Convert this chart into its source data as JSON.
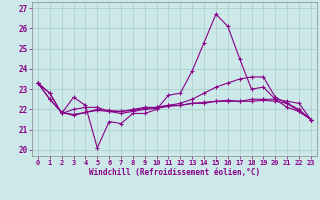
{
  "xlabel": "Windchill (Refroidissement éolien,°C)",
  "bg_color": "#cce8e8",
  "line_color": "#880088",
  "grid_color": "#aacccc",
  "xlim": [
    -0.5,
    23.5
  ],
  "ylim": [
    19.7,
    27.3
  ],
  "yticks": [
    20,
    21,
    22,
    23,
    24,
    25,
    26,
    27
  ],
  "xticks": [
    0,
    1,
    2,
    3,
    4,
    5,
    6,
    7,
    8,
    9,
    10,
    11,
    12,
    13,
    14,
    15,
    16,
    17,
    18,
    19,
    20,
    21,
    22,
    23
  ],
  "series": [
    [
      23.3,
      22.8,
      21.8,
      22.6,
      22.2,
      20.1,
      21.4,
      21.3,
      21.8,
      21.8,
      22.0,
      22.7,
      22.8,
      23.9,
      25.3,
      26.7,
      26.1,
      24.5,
      23.0,
      23.1,
      22.5,
      22.1,
      21.9,
      21.5
    ],
    [
      23.3,
      22.8,
      21.8,
      22.0,
      22.1,
      22.1,
      21.9,
      21.9,
      22.0,
      22.1,
      22.1,
      22.2,
      22.2,
      22.3,
      22.3,
      22.4,
      22.4,
      22.4,
      22.5,
      22.5,
      22.5,
      22.4,
      22.3,
      21.5
    ],
    [
      23.3,
      22.5,
      21.85,
      21.75,
      21.85,
      22.0,
      21.95,
      21.9,
      21.95,
      22.05,
      22.1,
      22.2,
      22.3,
      22.5,
      22.8,
      23.1,
      23.3,
      23.5,
      23.6,
      23.6,
      22.6,
      22.3,
      21.9,
      21.5
    ],
    [
      23.3,
      22.5,
      21.85,
      21.7,
      21.85,
      21.95,
      21.9,
      21.8,
      21.9,
      22.0,
      22.05,
      22.15,
      22.2,
      22.3,
      22.35,
      22.4,
      22.45,
      22.4,
      22.4,
      22.45,
      22.4,
      22.3,
      22.0,
      21.5
    ]
  ]
}
